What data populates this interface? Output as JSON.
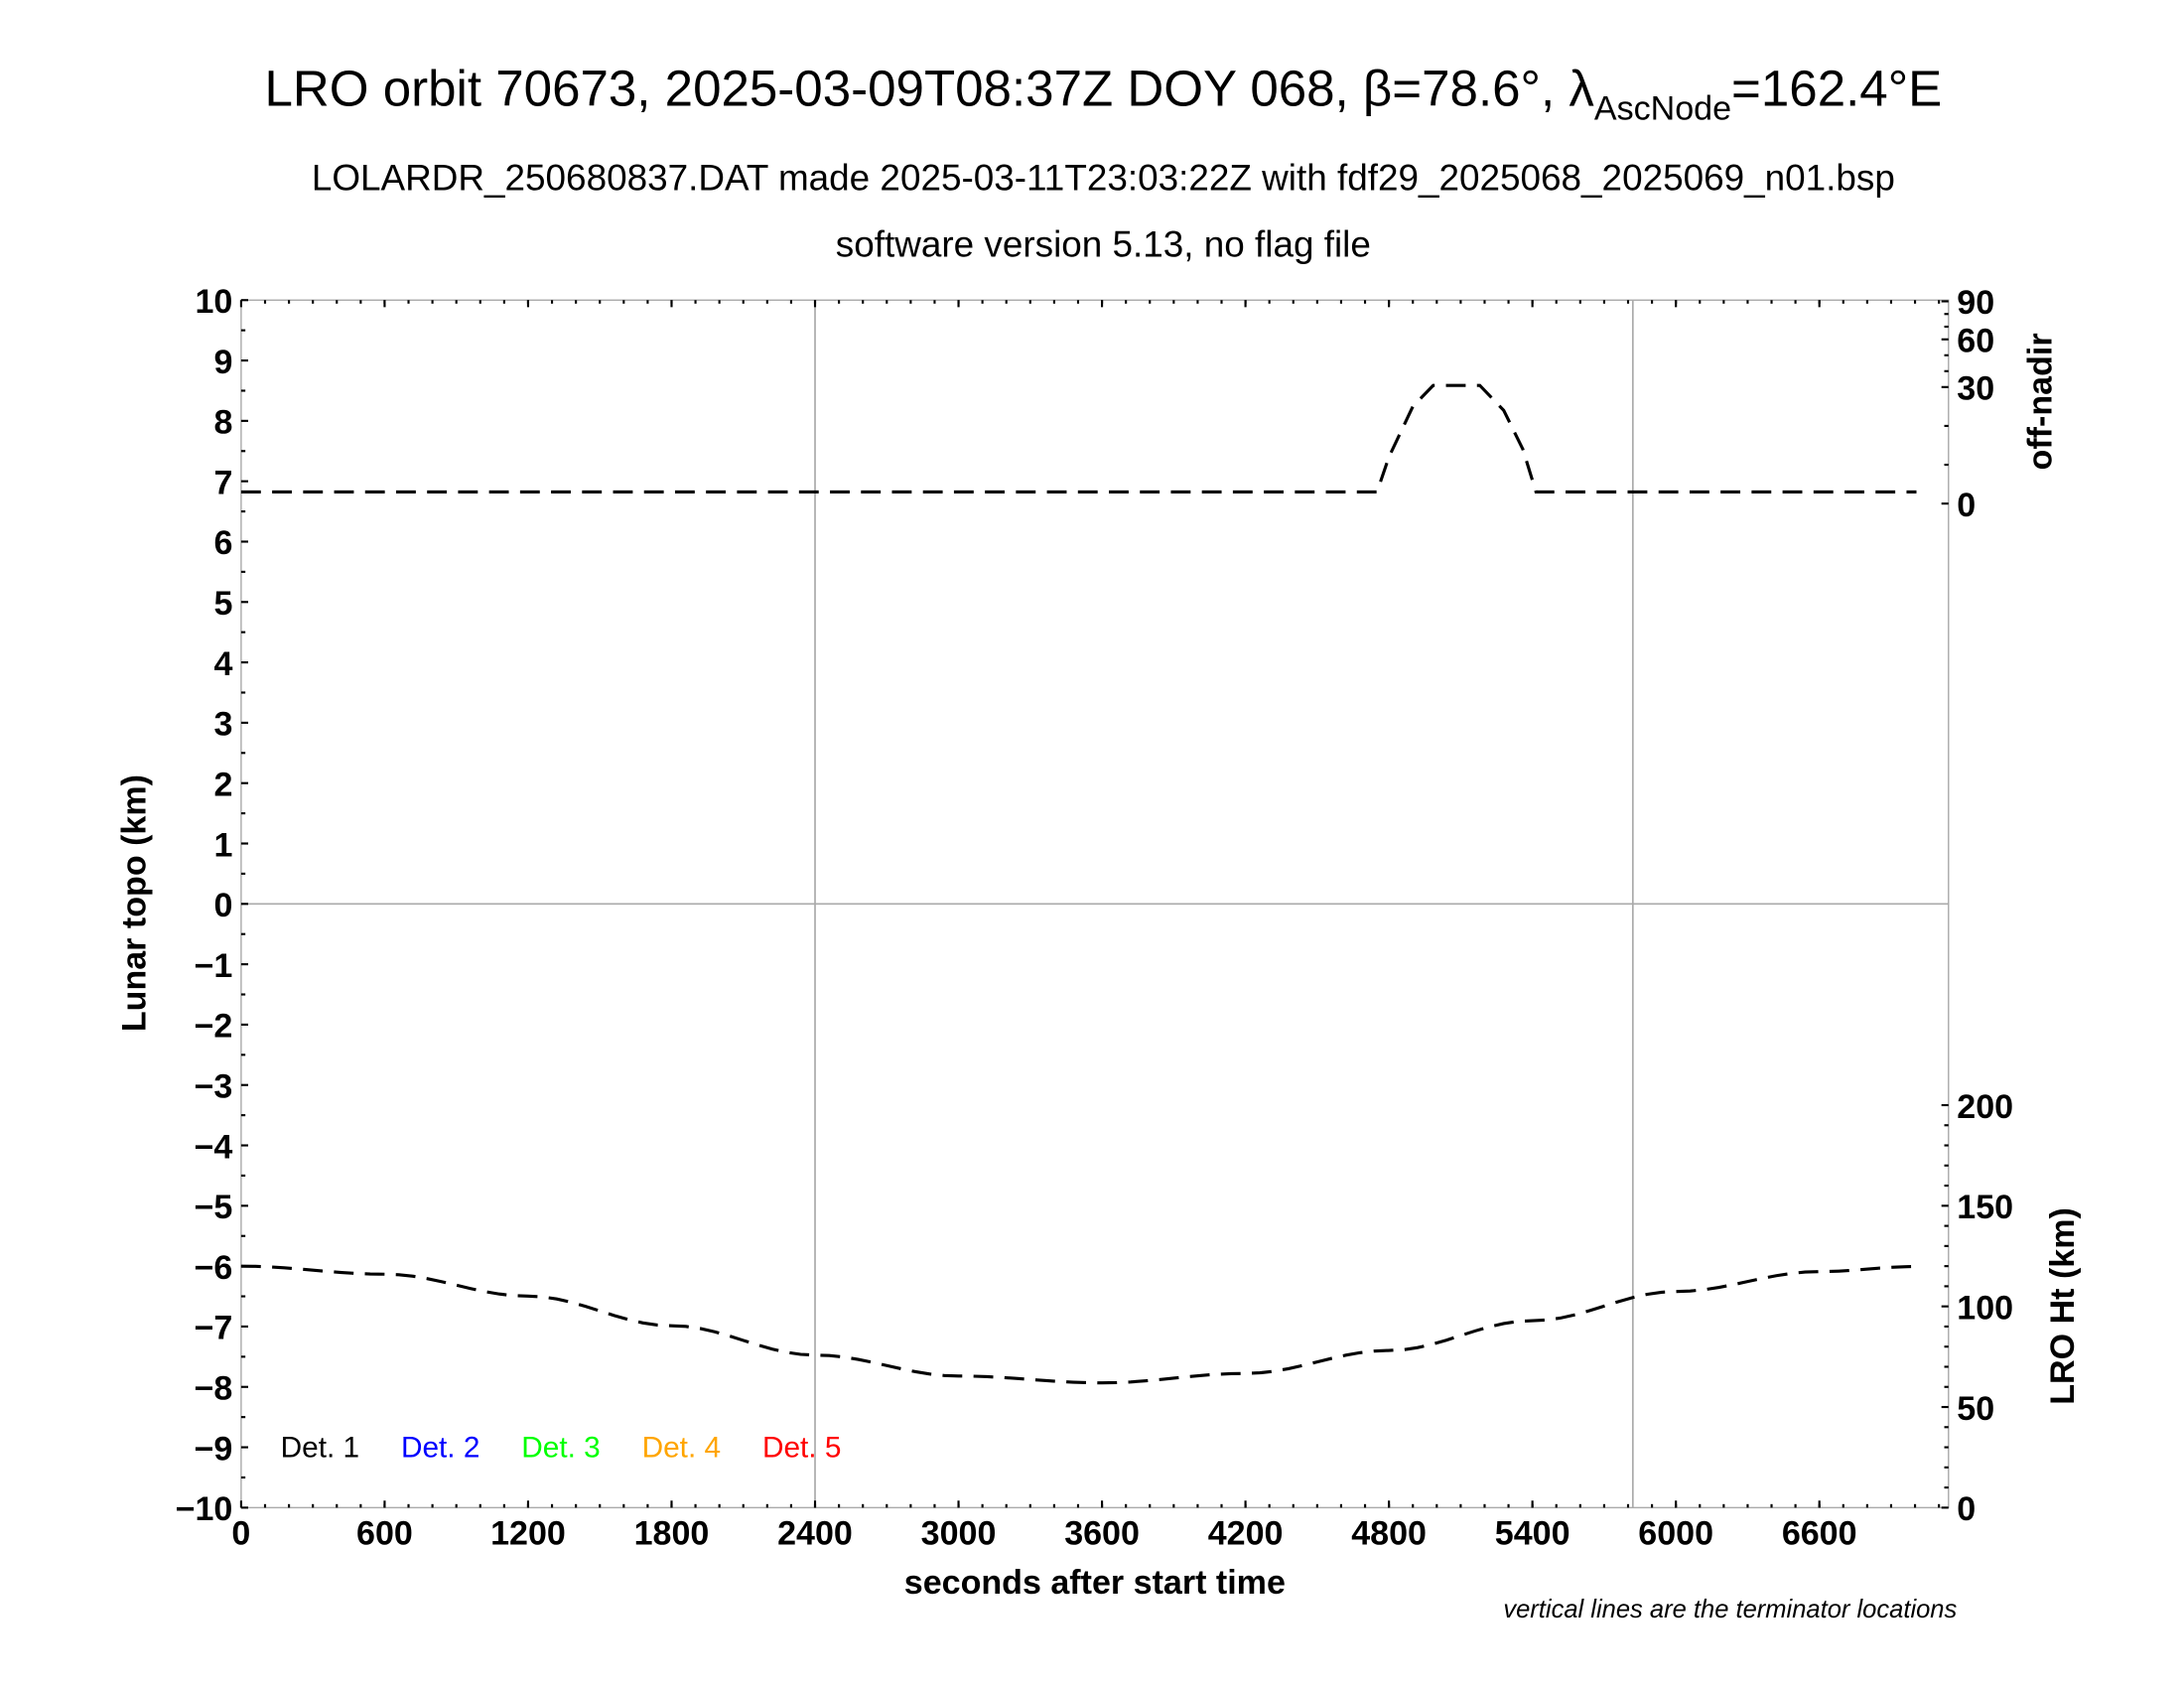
{
  "header": {
    "title_main": "LRO orbit 70673, 2025-03-09T08:37Z DOY 068, β=78.6°, λ",
    "title_sub": "AscNode",
    "title_end": "=162.4°E",
    "subtitle1": "LOLARDR_250680837.DAT made 2025-03-11T23:03:22Z with fdf29_2025068_2025069_n01.bsp",
    "subtitle2": "software version 5.13, no flag file"
  },
  "footer_note": "vertical lines are the terminator locations",
  "chart_data": {
    "type": "line",
    "xlabel": "seconds after start time",
    "ylabel": "Lunar topo (km)",
    "xlim": [
      0,
      7140
    ],
    "ylim": [
      -10,
      10
    ],
    "x_ticks": [
      "0",
      "600",
      "1200",
      "1800",
      "2400",
      "3000",
      "3600",
      "4200",
      "4800",
      "5400",
      "6000",
      "6600"
    ],
    "y_ticks": [
      "10",
      "9",
      "8",
      "7",
      "6",
      "5",
      "4",
      "3",
      "2",
      "1",
      "0",
      "−1",
      "−2",
      "−3",
      "−4",
      "−5",
      "−6",
      "−7",
      "−8",
      "−9",
      "−10"
    ],
    "terminator_lines_x": [
      2400,
      5820
    ],
    "zero_line_y": 0,
    "right_axis_top": {
      "label": "off-nadir",
      "ticks": [
        {
          "v": 0,
          "label": "0",
          "topo": 6.63
        },
        {
          "v": 30,
          "label": "30",
          "topo": 8.56
        },
        {
          "v": 60,
          "label": "60",
          "topo": 9.35
        },
        {
          "v": 90,
          "label": "90",
          "topo": 9.98
        }
      ]
    },
    "right_axis_bottom": {
      "label": "LRO Ht (km)",
      "ticks": [
        "0",
        "50",
        "100",
        "150",
        "200"
      ],
      "range": [
        0,
        600
      ]
    },
    "legend": {
      "placement": "bottom-left",
      "entries": [
        {
          "name": "Det. 1",
          "color": "#000000"
        },
        {
          "name": "Det. 2",
          "color": "#0000ff"
        },
        {
          "name": "Det. 3",
          "color": "#00ff00"
        },
        {
          "name": "Det. 4",
          "color": "#ffa500"
        },
        {
          "name": "Det. 5",
          "color": "#ff0000"
        }
      ]
    },
    "series": [
      {
        "name": "off-nadir",
        "style": "dashed",
        "x": [
          0,
          4700,
          4750,
          4800,
          4900,
          4985,
          5180,
          5280,
          5360,
          5415,
          5450,
          7006
        ],
        "y": [
          3,
          3,
          3,
          12,
          25,
          31,
          31,
          24,
          14,
          3,
          3,
          3
        ]
      },
      {
        "name": "LRO Ht (km)",
        "style": "dashed",
        "x": [
          0,
          600,
          1200,
          1800,
          2400,
          3000,
          3600,
          4200,
          4800,
          5400,
          6000,
          6600,
          7006
        ],
        "y": [
          120,
          116,
          105.1,
          90.4,
          75.8,
          65.4,
          62.0,
          66.7,
          78.1,
          92.9,
          107.4,
          117.3,
          119.8
        ]
      }
    ]
  }
}
